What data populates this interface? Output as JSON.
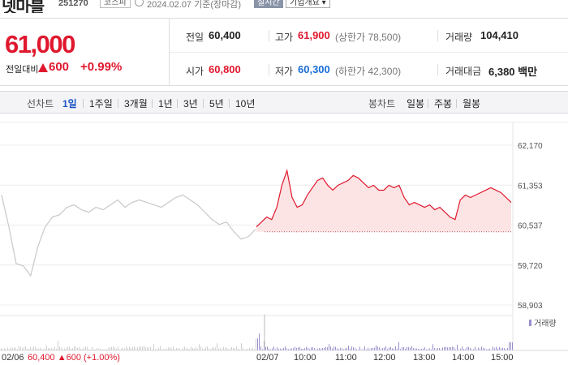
{
  "header": {
    "stock_name": "넷마블",
    "stock_code": "251270",
    "market": "코스피",
    "date_text": "2024.02.07  기준(장마감)",
    "realtime_label": "실시간",
    "company_label": "기업개요 ▾"
  },
  "price": {
    "current": "61,000",
    "prev_label": "전일대비",
    "change": "600",
    "change_pct": "+0.99%"
  },
  "info": {
    "prev_close_label": "전일",
    "prev_close": "60,400",
    "high_label": "고가",
    "high": "61,900",
    "upper_limit": "(상한가 78,500)",
    "volume_label": "거래량",
    "volume": "104,410",
    "open_label": "시가",
    "open": "60,800",
    "low_label": "저가",
    "low": "60,300",
    "lower_limit": "(하한가 42,300)",
    "amount_label": "거래대금",
    "amount": "6,380 백만"
  },
  "period_bar": {
    "line_label": "선차트",
    "periods": [
      "1일",
      "1주일",
      "3개월",
      "1년",
      "3년",
      "5년",
      "10년"
    ],
    "candle_label": "봉차트",
    "candles": [
      "일봉",
      "주봉",
      "월봉"
    ]
  },
  "colors": {
    "up": "#e0182e",
    "down": "#1a6dd6",
    "prev_day_line": "#c8c8c8",
    "fill": "#fde4e4"
  },
  "chart_data": {
    "type": "line",
    "y_ticks": [
      "62,170",
      "61,353",
      "60,537",
      "59,720",
      "58,903"
    ],
    "ylim": [
      58903,
      62170
    ],
    "baseline": 60400,
    "volume_label": "거래량",
    "prev_day_label": "02/06",
    "prev_day_summary": "60,400 ▲600 (+1.00%)",
    "time_labels": [
      "02/07",
      "10:00",
      "11:00",
      "12:00",
      "13:00",
      "14:00",
      "15:00"
    ],
    "series": [
      {
        "values": [
          61150,
          60500,
          59750,
          59700,
          59500,
          60100,
          60500,
          60700,
          60750,
          60900,
          60950,
          60850,
          60800,
          60900,
          60850,
          60950,
          61050,
          60900,
          61000,
          61050,
          61000,
          60950,
          60900,
          61000,
          61100,
          61150,
          61050,
          60950,
          60800,
          60650,
          60550,
          60600,
          60400,
          60250,
          60300,
          60450
        ]
      },
      {
        "values": [
          60500,
          60600,
          60700,
          60650,
          60900,
          61350,
          61650,
          61100,
          60900,
          60950,
          61150,
          61300,
          61450,
          61500,
          61350,
          61250,
          61350,
          61400,
          61450,
          61550,
          61500,
          61400,
          61300,
          61350,
          61250,
          61250,
          61350,
          61300,
          61350,
          61100,
          60950,
          61000,
          60950,
          60900,
          60950,
          60850,
          60900,
          60800,
          60700,
          60650,
          61050,
          61150,
          61100,
          61150,
          61200,
          61250,
          61300,
          61250,
          61200,
          61100,
          61000
        ]
      }
    ]
  }
}
